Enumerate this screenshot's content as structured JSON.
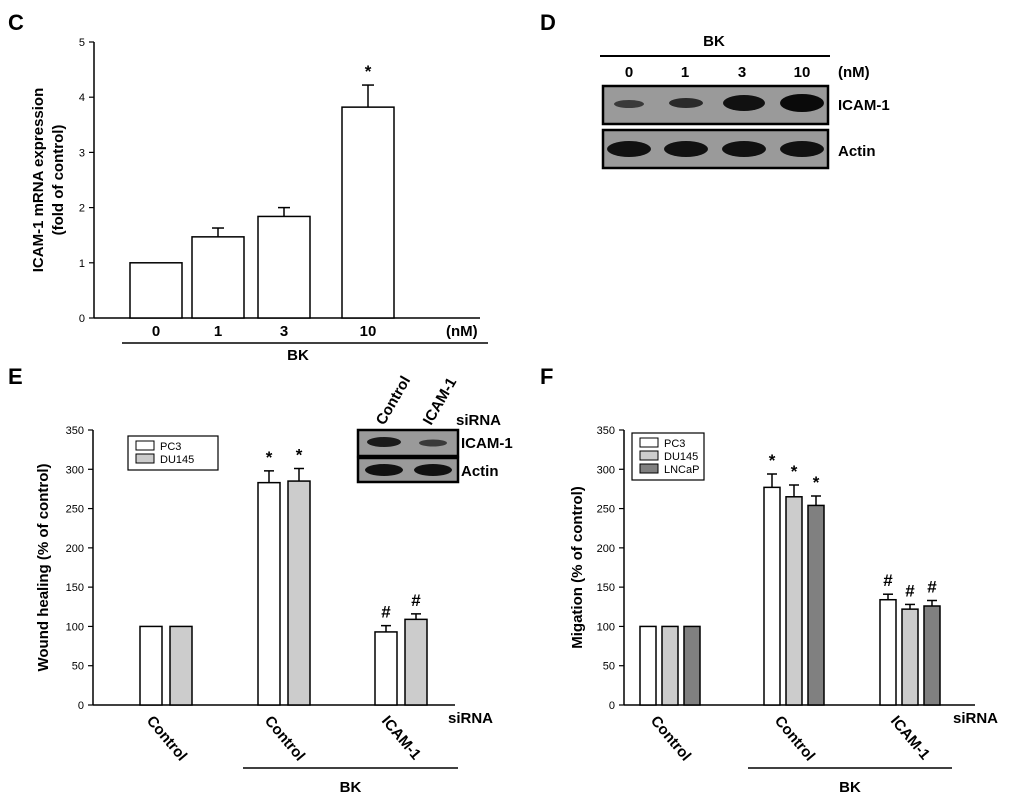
{
  "figure": {
    "panel_c": "C",
    "panel_d": "D",
    "panel_e": "E",
    "panel_f": "F"
  },
  "blot_d": {
    "treatment": "BK",
    "doses": [
      "0",
      "1",
      "3",
      "10"
    ],
    "unit": "(nM)",
    "rows": [
      "ICAM-1",
      "Actin"
    ]
  },
  "blot_e": {
    "lanes": [
      "Control",
      "ICAM-1"
    ],
    "suffix": "siRNA",
    "rows": [
      "ICAM-1",
      "Actin"
    ]
  },
  "chart_data": [
    {
      "type": "bar",
      "panel": "C",
      "categories": [
        "0",
        "1",
        "3",
        "10"
      ],
      "unit": "(nM)",
      "treatment": "BK",
      "values": [
        1.0,
        1.47,
        1.84,
        3.82
      ],
      "errors": [
        0,
        0.16,
        0.16,
        0.4
      ],
      "annotations": [
        "",
        "",
        "",
        "*"
      ],
      "ylabel": "ICAM-1 mRNA expression",
      "ylabel2": "(fold of control)",
      "ylim": [
        0,
        5
      ],
      "yticks": [
        0,
        1,
        2,
        3,
        4,
        5
      ],
      "color": "#ffffff"
    },
    {
      "type": "bar",
      "panel": "E",
      "categories": [
        "Control",
        "Control",
        "ICAM-1"
      ],
      "suffix": "siRNA",
      "treatment": "BK",
      "series": [
        {
          "name": "PC3",
          "color": "#ffffff",
          "values": [
            100,
            283,
            93
          ],
          "errors": [
            0,
            15,
            8
          ],
          "annotations": [
            "",
            "*",
            "#"
          ]
        },
        {
          "name": "DU145",
          "color": "#cccccc",
          "values": [
            100,
            285,
            109
          ],
          "errors": [
            0,
            16,
            7
          ],
          "annotations": [
            "",
            "*",
            "#"
          ]
        }
      ],
      "ylabel": "Wound healing (% of control)",
      "ylim": [
        0,
        350
      ],
      "yticks": [
        0,
        50,
        100,
        150,
        200,
        250,
        300,
        350
      ],
      "legend_position": "top-left"
    },
    {
      "type": "bar",
      "panel": "F",
      "categories": [
        "Control",
        "Control",
        "ICAM-1"
      ],
      "suffix": "siRNA",
      "treatment": "BK",
      "series": [
        {
          "name": "PC3",
          "color": "#ffffff",
          "values": [
            100,
            277,
            134
          ],
          "errors": [
            0,
            17,
            7
          ],
          "annotations": [
            "",
            "*",
            "#"
          ]
        },
        {
          "name": "DU145",
          "color": "#cccccc",
          "values": [
            100,
            265,
            122
          ],
          "errors": [
            0,
            15,
            6
          ],
          "annotations": [
            "",
            "*",
            "#"
          ]
        },
        {
          "name": "LNCaP",
          "color": "#808080",
          "values": [
            100,
            254,
            126
          ],
          "errors": [
            0,
            12,
            7
          ],
          "annotations": [
            "",
            "*",
            "#"
          ]
        }
      ],
      "ylabel": "Migation (% of control)",
      "ylim": [
        0,
        350
      ],
      "yticks": [
        0,
        50,
        100,
        150,
        200,
        250,
        300,
        350
      ],
      "legend_position": "top-left"
    }
  ]
}
